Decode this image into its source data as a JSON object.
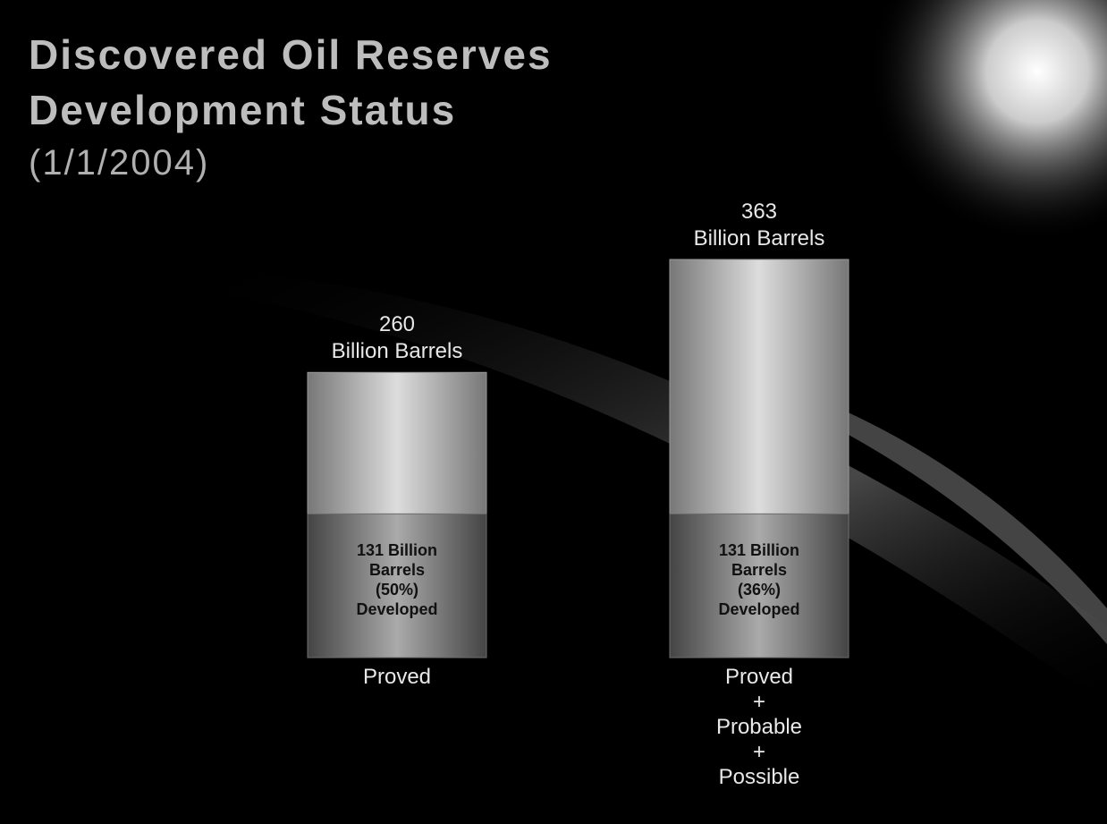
{
  "chart_data": {
    "type": "bar",
    "title": "Discovered Oil Reserves\nDevelopment Status",
    "subtitle": "(1/1/2004)",
    "categories": [
      "Proved",
      "Proved\n+\nProbable\n+\nPossible"
    ],
    "totals": {
      "values": [
        260,
        363
      ],
      "value_labels": [
        "260\nBillion Barrels",
        "363\nBillion Barrels"
      ]
    },
    "developed": {
      "values": [
        131,
        131
      ],
      "value_labels": [
        "131 Billion\nBarrels\n(50%)\nDeveloped",
        "131 Billion\nBarrels\n(36%)\nDeveloped"
      ]
    },
    "colors": {
      "total": "#9a9a9a",
      "developed": "#6e6e6e"
    }
  }
}
